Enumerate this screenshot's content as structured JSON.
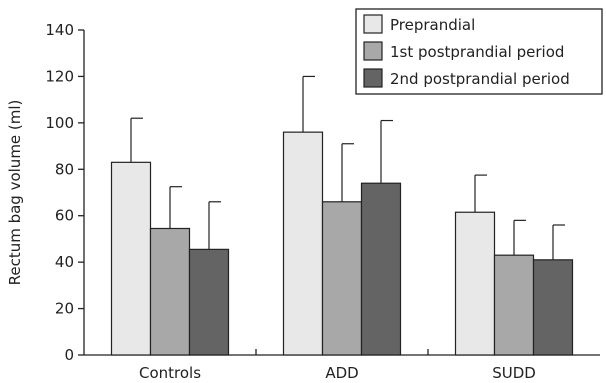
{
  "chart_data": {
    "type": "bar",
    "title": "",
    "xlabel": "",
    "ylabel": "Rectum bag volume (ml)",
    "ylim": [
      0,
      140
    ],
    "yticks": [
      0,
      20,
      40,
      60,
      80,
      100,
      120,
      140
    ],
    "grid": false,
    "legend_position": "top-right",
    "categories": [
      "Controls",
      "ADD",
      "SUDD"
    ],
    "series": [
      {
        "name": "Preprandial",
        "color": "#e8e8e8",
        "values": [
          83,
          96,
          61.5
        ],
        "error": [
          19,
          24,
          16
        ]
      },
      {
        "name": "1st postprandial period",
        "color": "#a8a8a8",
        "values": [
          54.5,
          66,
          43
        ],
        "error": [
          18,
          25,
          15
        ]
      },
      {
        "name": "2nd postprandial period",
        "color": "#646464",
        "values": [
          45.5,
          74,
          41
        ],
        "error": [
          20.5,
          27,
          15
        ]
      }
    ]
  }
}
